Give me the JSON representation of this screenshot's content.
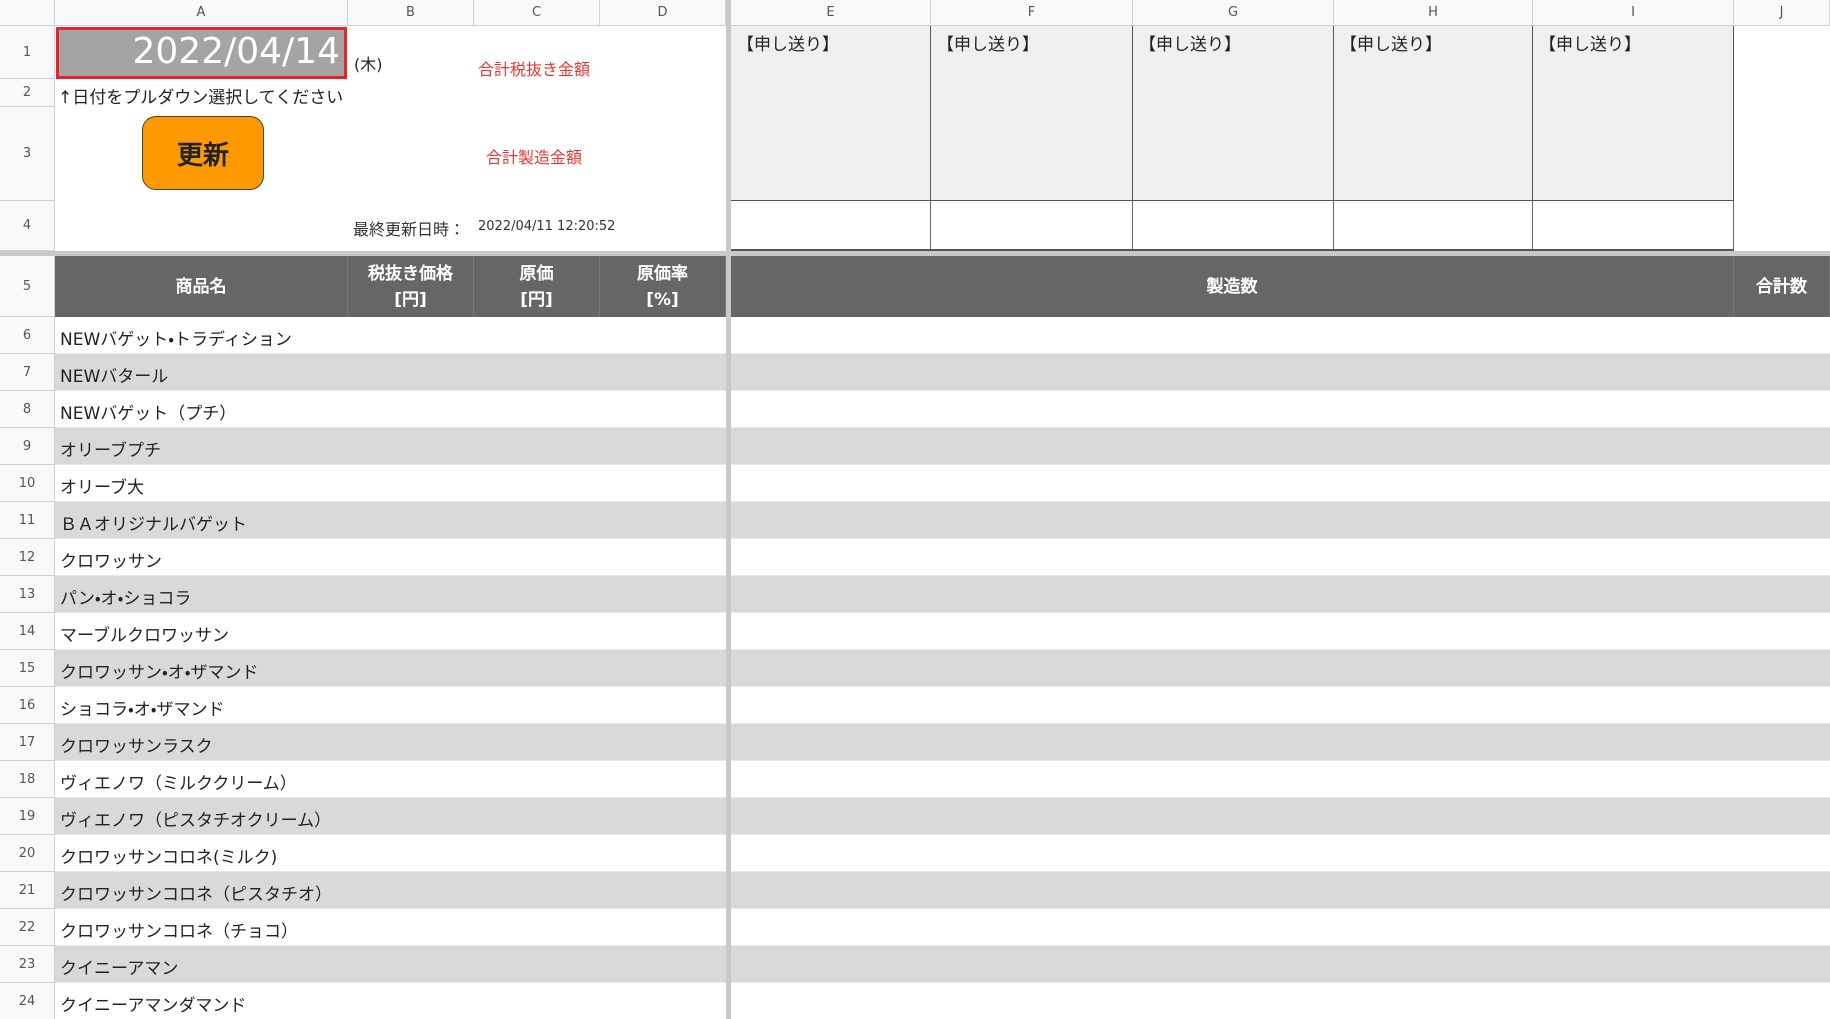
{
  "columns": [
    "A",
    "B",
    "C",
    "D",
    "E",
    "F",
    "G",
    "H",
    "I",
    "J"
  ],
  "rows": [
    "1",
    "2",
    "3",
    "4",
    "5",
    "6",
    "7",
    "8",
    "9",
    "10",
    "11",
    "12",
    "13",
    "14",
    "15",
    "16",
    "17",
    "18",
    "19",
    "20",
    "21",
    "22",
    "23",
    "24"
  ],
  "top": {
    "date": "2022/04/14",
    "weekday": "(木)",
    "hint": "↑日付をプルダウン選択してください",
    "button": "更新",
    "total_ex_tax_label": "合計税抜き金額",
    "total_production_label": "合計製造金額",
    "last_updated_label": "最終更新日時：",
    "last_updated": "2022/04/11 12:20:52",
    "notes": [
      "【申し送り】",
      "【申し送り】",
      "【申し送り】",
      "【申し送り】",
      "【申し送り】"
    ]
  },
  "table": {
    "headers": {
      "name": "商品名",
      "price": [
        "税抜き価格",
        "[円]"
      ],
      "cost": [
        "原価",
        "[円]"
      ],
      "cost_rate": [
        "原価率",
        "[%]"
      ],
      "production": "製造数",
      "total": "合計数"
    },
    "products": [
      "NEWバゲット・トラディション",
      "NEWバタール",
      "NEWバゲット（プチ）",
      "オリーブプチ",
      "オリーブ大",
      "ＢＡオリジナルバゲット",
      "クロワッサン",
      "パン・オ・ショコラ",
      "マーブルクロワッサン",
      "クロワッサン・オ・ザマンド",
      "ショコラ・オ・ザマンド",
      "クロワッサンラスク",
      "ヴィエノワ（ミルククリーム）",
      "ヴィエノワ（ピスタチオクリーム）",
      "クロワッサンコロネ(ミルク)",
      "クロワッサンコロネ（ピスタチオ）",
      "クロワッサンコロネ（チョコ）",
      "クイニーアマン",
      "クイニーアマンダマンド"
    ]
  }
}
